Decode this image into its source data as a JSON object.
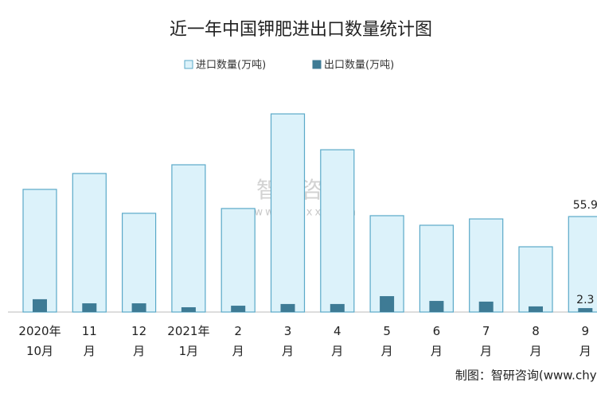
{
  "chart_data": {
    "type": "bar",
    "title": "近一年中国钾肥进出口数量统计图",
    "categories": [
      "2020年\n10月",
      "11\n月",
      "12\n月",
      "2021年\n1月",
      "2\n月",
      "3\n月",
      "4\n月",
      "5\n月",
      "6\n月",
      "7\n月",
      "8\n月",
      "9\n月"
    ],
    "series": [
      {
        "name": "进口数量(万吨)",
        "color": "#dcf2fa",
        "values": [
          71.8,
          81.1,
          57.8,
          86.2,
          60.6,
          116,
          95,
          56.4,
          50.8,
          54.5,
          38.2,
          55.9
        ]
      },
      {
        "name": "出口数量(万吨)",
        "color": "#3e7b95",
        "values": [
          7.5,
          5.1,
          5.1,
          2.8,
          3.7,
          4.7,
          4.7,
          9.3,
          6.5,
          6.1,
          3.3,
          2.3
        ]
      }
    ],
    "ylim": [
      0,
      130
    ],
    "watermark": [
      "智研咨询",
      "www.chyxx.com"
    ],
    "source": "制图：智研咨询(www.chyxx.com)"
  }
}
